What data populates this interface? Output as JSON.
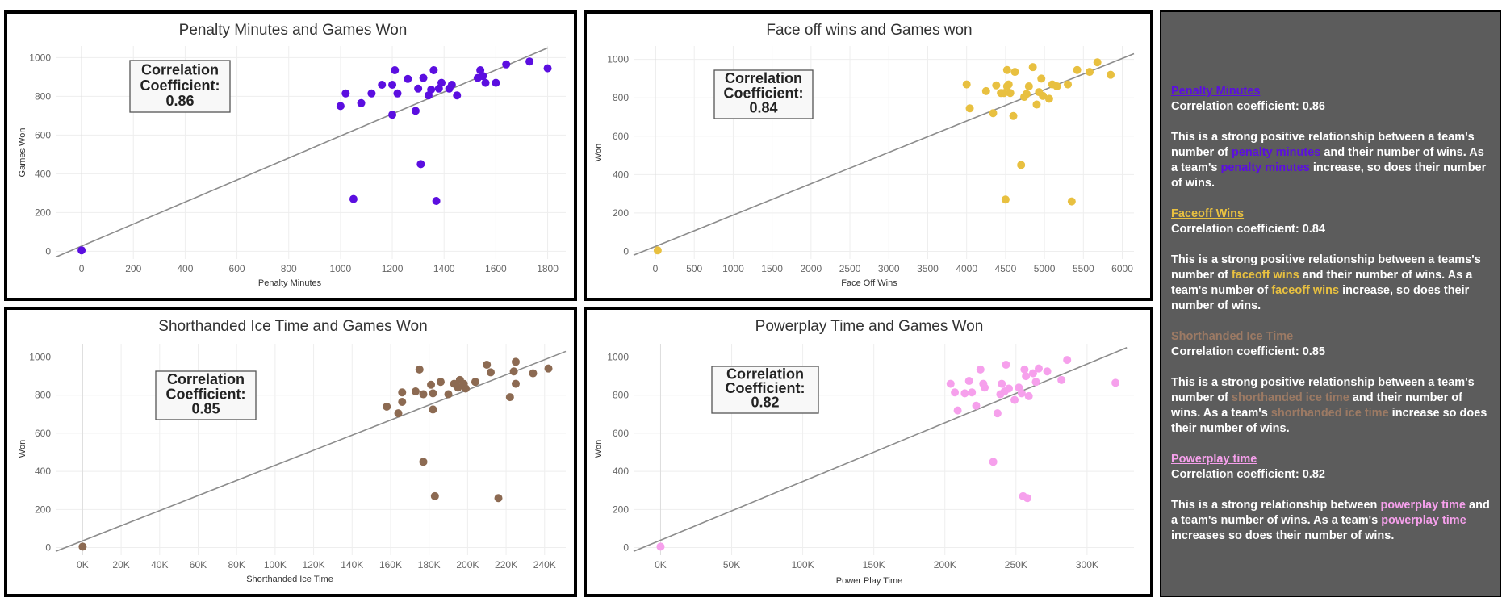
{
  "chart_data": [
    {
      "id": "p1",
      "type": "scatter",
      "title": "Penalty Minutes and Games Won",
      "xlabel": "Penalty Minutes",
      "ylabel": "Games Won",
      "xlim": [
        -100,
        1870
      ],
      "ylim": [
        -40,
        1060
      ],
      "xticks": [
        0,
        200,
        400,
        600,
        800,
        1000,
        1200,
        1400,
        1600,
        1800
      ],
      "xtick_labels": [
        "0",
        "200",
        "400",
        "600",
        "800",
        "1000",
        "1200",
        "1400",
        "1600",
        "1800"
      ],
      "yticks": [
        0,
        200,
        400,
        600,
        800,
        1000
      ],
      "ytick_labels": [
        "0",
        "200",
        "400",
        "600",
        "800",
        "1000"
      ],
      "color": "#5b0ee0",
      "trendline": [
        [
          -100,
          -30
        ],
        [
          1800,
          1050
        ]
      ],
      "correlation_label": [
        "Correlation",
        "Coefficient:",
        "0.86"
      ],
      "points": [
        [
          0,
          5
        ],
        [
          1000,
          750
        ],
        [
          1020,
          815
        ],
        [
          1050,
          270
        ],
        [
          1080,
          765
        ],
        [
          1120,
          815
        ],
        [
          1160,
          860
        ],
        [
          1200,
          705
        ],
        [
          1200,
          860
        ],
        [
          1210,
          935
        ],
        [
          1220,
          815
        ],
        [
          1260,
          890
        ],
        [
          1290,
          725
        ],
        [
          1300,
          840
        ],
        [
          1310,
          450
        ],
        [
          1320,
          895
        ],
        [
          1340,
          805
        ],
        [
          1350,
          835
        ],
        [
          1360,
          935
        ],
        [
          1370,
          260
        ],
        [
          1380,
          840
        ],
        [
          1390,
          870
        ],
        [
          1420,
          840
        ],
        [
          1430,
          860
        ],
        [
          1450,
          805
        ],
        [
          1530,
          895
        ],
        [
          1540,
          935
        ],
        [
          1550,
          905
        ],
        [
          1560,
          870
        ],
        [
          1600,
          870
        ],
        [
          1640,
          965
        ],
        [
          1730,
          980
        ],
        [
          1800,
          945
        ]
      ]
    },
    {
      "id": "p2",
      "type": "scatter",
      "title": "Face off wins and Games won",
      "xlabel": "Face Off Wins",
      "ylabel": "Won",
      "xlim": [
        -280,
        6150
      ],
      "ylim": [
        -40,
        1070
      ],
      "xticks": [
        0,
        500,
        1000,
        1500,
        2000,
        2500,
        3000,
        3500,
        4000,
        4500,
        5000,
        5500,
        6000
      ],
      "xtick_labels": [
        "0",
        "500",
        "1000",
        "1500",
        "2000",
        "2500",
        "3000",
        "3500",
        "4000",
        "4500",
        "5000",
        "5500",
        "6000"
      ],
      "yticks": [
        0,
        200,
        400,
        600,
        800,
        1000
      ],
      "ytick_labels": [
        "0",
        "200",
        "400",
        "600",
        "800",
        "1000"
      ],
      "color": "#e8c040",
      "trendline": [
        [
          -280,
          -20
        ],
        [
          6150,
          1030
        ]
      ],
      "correlation_label": [
        "Correlation",
        "Coefficient:",
        "0.84"
      ],
      "points": [
        [
          30,
          5
        ],
        [
          4000,
          870
        ],
        [
          4040,
          745
        ],
        [
          4250,
          835
        ],
        [
          4340,
          720
        ],
        [
          4380,
          865
        ],
        [
          4440,
          825
        ],
        [
          4480,
          825
        ],
        [
          4500,
          270
        ],
        [
          4520,
          945
        ],
        [
          4520,
          860
        ],
        [
          4540,
          870
        ],
        [
          4560,
          825
        ],
        [
          4600,
          705
        ],
        [
          4620,
          935
        ],
        [
          4700,
          450
        ],
        [
          4740,
          805
        ],
        [
          4770,
          820
        ],
        [
          4800,
          860
        ],
        [
          4850,
          960
        ],
        [
          4900,
          765
        ],
        [
          4930,
          830
        ],
        [
          4960,
          900
        ],
        [
          4980,
          810
        ],
        [
          5060,
          795
        ],
        [
          5100,
          870
        ],
        [
          5160,
          860
        ],
        [
          5300,
          870
        ],
        [
          5350,
          260
        ],
        [
          5420,
          945
        ],
        [
          5580,
          935
        ],
        [
          5680,
          985
        ],
        [
          5850,
          920
        ]
      ]
    },
    {
      "id": "p3",
      "type": "scatter",
      "title": "Shorthanded Ice Time and Games Won",
      "xlabel": "Shorthanded Ice Time",
      "ylabel": "Won",
      "xlim": [
        -14000,
        251000
      ],
      "ylim": [
        -40,
        1070
      ],
      "xticks": [
        0,
        20000,
        40000,
        60000,
        80000,
        100000,
        120000,
        140000,
        160000,
        180000,
        200000,
        220000,
        240000
      ],
      "xtick_labels": [
        "0K",
        "20K",
        "40K",
        "60K",
        "80K",
        "100K",
        "120K",
        "140K",
        "160K",
        "180K",
        "200K",
        "220K",
        "240K"
      ],
      "yticks": [
        0,
        200,
        400,
        600,
        800,
        1000
      ],
      "ytick_labels": [
        "0",
        "200",
        "400",
        "600",
        "800",
        "1000"
      ],
      "color": "#8c6a52",
      "trendline": [
        [
          -14000,
          -20
        ],
        [
          251000,
          1030
        ]
      ],
      "correlation_label": [
        "Correlation",
        "Coefficient:",
        "0.85"
      ],
      "points": [
        [
          0,
          5
        ],
        [
          158000,
          740
        ],
        [
          164000,
          705
        ],
        [
          166000,
          765
        ],
        [
          166000,
          815
        ],
        [
          173000,
          820
        ],
        [
          175000,
          935
        ],
        [
          177000,
          805
        ],
        [
          177000,
          450
        ],
        [
          181000,
          855
        ],
        [
          182000,
          810
        ],
        [
          183000,
          270
        ],
        [
          182000,
          725
        ],
        [
          186000,
          870
        ],
        [
          190000,
          805
        ],
        [
          193000,
          860
        ],
        [
          195000,
          840
        ],
        [
          196000,
          880
        ],
        [
          198000,
          860
        ],
        [
          199000,
          835
        ],
        [
          204000,
          870
        ],
        [
          210000,
          960
        ],
        [
          212000,
          920
        ],
        [
          216000,
          260
        ],
        [
          222000,
          790
        ],
        [
          224000,
          925
        ],
        [
          225000,
          975
        ],
        [
          225000,
          860
        ],
        [
          234000,
          915
        ],
        [
          242000,
          940
        ]
      ]
    },
    {
      "id": "p4",
      "type": "scatter",
      "title": "Powerplay Time and Games Won",
      "xlabel": "Power Play Time",
      "ylabel": "Won",
      "xlim": [
        -19000,
        333000
      ],
      "ylim": [
        -40,
        1070
      ],
      "xticks": [
        0,
        50000,
        100000,
        150000,
        200000,
        250000,
        300000
      ],
      "xtick_labels": [
        "0K",
        "50K",
        "100K",
        "150K",
        "200K",
        "250K",
        "300K"
      ],
      "yticks": [
        0,
        200,
        400,
        600,
        800,
        1000
      ],
      "ytick_labels": [
        "0",
        "200",
        "400",
        "600",
        "800",
        "1000"
      ],
      "color": "#f6a0ec",
      "trendline": [
        [
          -19000,
          -20
        ],
        [
          328000,
          1050
        ]
      ],
      "correlation_label": [
        "Correlation",
        "Coefficient:",
        "0.82"
      ],
      "points": [
        [
          0,
          5
        ],
        [
          204000,
          860
        ],
        [
          207000,
          815
        ],
        [
          209000,
          720
        ],
        [
          214000,
          810
        ],
        [
          217000,
          875
        ],
        [
          219000,
          815
        ],
        [
          222000,
          745
        ],
        [
          225000,
          935
        ],
        [
          227000,
          860
        ],
        [
          228000,
          840
        ],
        [
          234000,
          450
        ],
        [
          237000,
          705
        ],
        [
          239000,
          805
        ],
        [
          240000,
          860
        ],
        [
          242000,
          820
        ],
        [
          243000,
          960
        ],
        [
          245000,
          835
        ],
        [
          249000,
          775
        ],
        [
          252000,
          840
        ],
        [
          254000,
          810
        ],
        [
          255000,
          270
        ],
        [
          256000,
          935
        ],
        [
          257000,
          900
        ],
        [
          258000,
          260
        ],
        [
          259000,
          795
        ],
        [
          262000,
          915
        ],
        [
          264000,
          870
        ],
        [
          266000,
          940
        ],
        [
          272000,
          925
        ],
        [
          282000,
          880
        ],
        [
          286000,
          985
        ],
        [
          320000,
          865
        ]
      ]
    }
  ],
  "summary": {
    "sections": [
      {
        "title": "Penalty Minutes",
        "color": "#5b0ee0",
        "coef": "Correlation coefficient: 0.86",
        "text": [
          {
            "t": "This is a strong positive relationship between a team's number of "
          },
          {
            "t": "penalty minutes",
            "hl": true
          },
          {
            "t": " and their number of wins. As a team's "
          },
          {
            "t": "penalty minutes",
            "hl": true
          },
          {
            "t": " increase, so does their number of wins."
          }
        ]
      },
      {
        "title": "Faceoff Wins",
        "color": "#e8c040",
        "coef": "Correlation coefficient: 0.84",
        "text": [
          {
            "t": "This is a strong positive relationship between a teams's number of "
          },
          {
            "t": "faceoff wins",
            "hl": true
          },
          {
            "t": " and their number of wins. As a team's number of "
          },
          {
            "t": "faceoff wins",
            "hl": true
          },
          {
            "t": " increase, so does their number of wins."
          }
        ]
      },
      {
        "title": "Shorthanded Ice Time",
        "color": "#9c7a64",
        "coef": "Correlation coefficient: 0.85",
        "text": [
          {
            "t": "This is a strong positive relationship between a team's number of "
          },
          {
            "t": "shorthanded ice time",
            "hl": true
          },
          {
            "t": " and their number of wins. As a team's "
          },
          {
            "t": "shorthanded ice time",
            "hl": true
          },
          {
            "t": " increase so does their number of wins."
          }
        ]
      },
      {
        "title": "Powerplay time",
        "color": "#f6a0ec",
        "coef": "Correlation coefficient: 0.82",
        "text": [
          {
            "t": "This is a strong relationship between "
          },
          {
            "t": "powerplay time",
            "hl": true
          },
          {
            "t": " and a team's number of wins. As a team's "
          },
          {
            "t": "powerplay time",
            "hl": true
          },
          {
            "t": " increases so does their number of wins."
          }
        ]
      }
    ]
  }
}
